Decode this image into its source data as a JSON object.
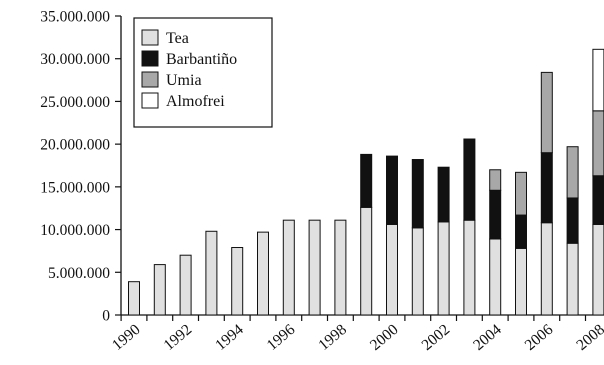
{
  "chart_data": {
    "type": "bar",
    "stacked": true,
    "title": "",
    "xlabel": "",
    "ylabel": "",
    "ylim": [
      0,
      35000000
    ],
    "yticks": [
      0,
      5000000,
      10000000,
      15000000,
      20000000,
      25000000,
      30000000,
      35000000
    ],
    "ytick_labels": [
      "0",
      "5.000.000",
      "10.000.000",
      "15.000.000",
      "20.000.000",
      "25.000.000",
      "30.000.000",
      "35.000.000"
    ],
    "categories": [
      "1990",
      "1991",
      "1992",
      "1993",
      "1994",
      "1995",
      "1996",
      "1997",
      "1998",
      "1999",
      "2000",
      "2001",
      "2002",
      "2003",
      "2004",
      "2005",
      "2006",
      "2007",
      "2008"
    ],
    "xtick_labels": [
      "1990",
      "1992",
      "1994",
      "1996",
      "1998",
      "2000",
      "2002",
      "2004",
      "2006",
      "2008"
    ],
    "grid": false,
    "legend_position": "top-left",
    "series": [
      {
        "name": "Tea",
        "color": "#e0e0e0",
        "values": [
          3900000,
          5900000,
          7000000,
          9800000,
          7900000,
          9700000,
          11100000,
          11100000,
          11100000,
          12600000,
          10600000,
          10200000,
          10900000,
          11100000,
          8900000,
          7800000,
          10800000,
          8400000,
          10600000
        ]
      },
      {
        "name": "Barbantiño",
        "color": "#111111",
        "values": [
          0,
          0,
          0,
          0,
          0,
          0,
          0,
          0,
          0,
          6200000,
          8000000,
          8000000,
          6400000,
          9500000,
          5700000,
          3900000,
          8200000,
          5300000,
          5700000
        ]
      },
      {
        "name": "Umia",
        "color": "#a8a8a8",
        "values": [
          0,
          0,
          0,
          0,
          0,
          0,
          0,
          0,
          0,
          0,
          0,
          0,
          0,
          0,
          2400000,
          5000000,
          9400000,
          6000000,
          7600000
        ]
      },
      {
        "name": "Almofrei",
        "color": "#ffffff",
        "values": [
          0,
          0,
          0,
          0,
          0,
          0,
          0,
          0,
          0,
          0,
          0,
          0,
          0,
          0,
          0,
          0,
          0,
          0,
          7200000
        ]
      }
    ]
  }
}
